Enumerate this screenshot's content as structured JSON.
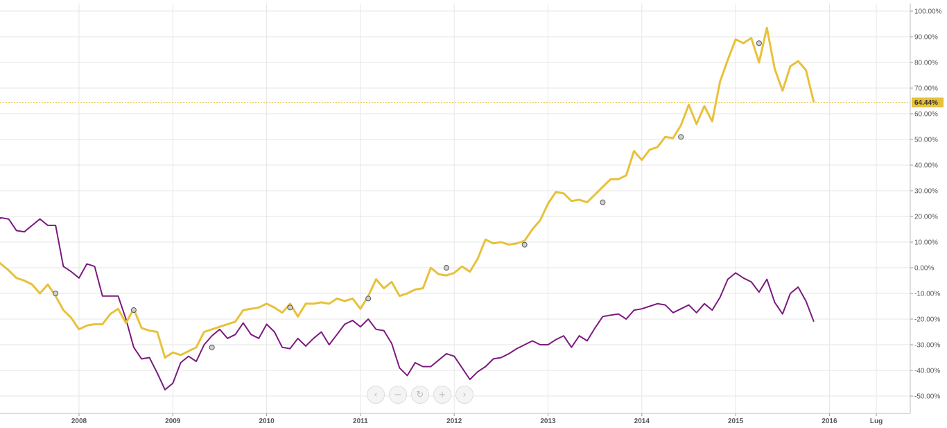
{
  "chart_data": {
    "type": "line",
    "x_axis": {
      "ticks": [
        "2008",
        "2009",
        "2010",
        "2011",
        "2012",
        "2013",
        "2014",
        "2015",
        "2016",
        "Lug"
      ],
      "range": [
        "2007-01",
        "2016-07"
      ]
    },
    "y_axis": {
      "ticks": [
        "100.00%",
        "90.00%",
        "80.00%",
        "70.00%",
        "60.00%",
        "50.00%",
        "40.00%",
        "30.00%",
        "20.00%",
        "10.00%",
        "0.00%",
        "-10.00%",
        "-20.00%",
        "-30.00%",
        "-40.00%",
        "-50.00%"
      ],
      "range": [
        -52,
        102
      ],
      "unit": "%",
      "position": "right"
    },
    "grid": true,
    "current_value": {
      "label": "64.44%",
      "value": 64.44,
      "color": "#e8c13a"
    },
    "series": [
      {
        "color": "#e8c13a",
        "start": "2007-01",
        "step": "month",
        "values": [
          1,
          3.5,
          1.5,
          -1,
          -4,
          -5,
          -6.5,
          -10,
          -6.5,
          -11,
          -16.5,
          -19.5,
          -24,
          -22.5,
          -22,
          -22,
          -18,
          -16,
          -21.5,
          -16,
          -23.5,
          -24.5,
          -25,
          -35,
          -33,
          -34,
          -32.5,
          -31,
          -25,
          -24,
          -23,
          -22,
          -21,
          -16.5,
          -16,
          -15.5,
          -14,
          -15.5,
          -17.5,
          -14,
          -19,
          -14,
          -14,
          -13.5,
          -14,
          -12,
          -13,
          -12,
          -16,
          -11,
          -4.5,
          -8,
          -5.5,
          -11,
          -10,
          -8.5,
          -8,
          0,
          -2.5,
          -3,
          -2,
          0.5,
          -1.5,
          3.5,
          11,
          9.5,
          10,
          9,
          9.5,
          10.5,
          15,
          18.5,
          25,
          29.5,
          29,
          26,
          26.5,
          25.5,
          28.5,
          31.5,
          34.5,
          34.5,
          36,
          45.5,
          42,
          46,
          47,
          51,
          50.5,
          55.5,
          63.5,
          56,
          63,
          57,
          72.5,
          81,
          89,
          87.5,
          89.5,
          80,
          93.5,
          77.5,
          69,
          78.5,
          80.5,
          77,
          64.44
        ],
        "markers": [
          {
            "date": "2007-10",
            "value": -10
          },
          {
            "date": "2008-08",
            "value": -16.5
          },
          {
            "date": "2009-06",
            "value": -31
          },
          {
            "date": "2010-04",
            "value": -15.5
          },
          {
            "date": "2011-02",
            "value": -12
          },
          {
            "date": "2011-12",
            "value": 0
          },
          {
            "date": "2012-10",
            "value": 9
          },
          {
            "date": "2013-08",
            "value": 25.5
          },
          {
            "date": "2014-06",
            "value": 51
          },
          {
            "date": "2015-04",
            "value": 87.5
          }
        ]
      },
      {
        "color": "#7b1a7e",
        "start": "2007-01",
        "step": "month",
        "values": [
          10.5,
          16.5,
          19.5,
          19,
          14.5,
          14,
          16.5,
          19,
          16.5,
          16.5,
          0.5,
          -1.5,
          -4,
          1.5,
          0.5,
          -11,
          -11,
          -11,
          -20,
          -31,
          -35.5,
          -35,
          -41,
          -47.5,
          -45,
          -37,
          -34.5,
          -36.5,
          -30,
          -26.5,
          -24,
          -27.5,
          -26,
          -21.5,
          -26,
          -27.5,
          -22,
          -25,
          -31,
          -31.5,
          -27.5,
          -30.5,
          -27.5,
          -25,
          -30,
          -26,
          -22,
          -20.5,
          -23,
          -20,
          -24,
          -24.5,
          -29.5,
          -39,
          -42,
          -37,
          -38.5,
          -38.5,
          -36,
          -33.5,
          -34.5,
          -39,
          -43.5,
          -40.5,
          -38.5,
          -35.5,
          -35,
          -33.5,
          -31.5,
          -30,
          -28.5,
          -30,
          -30,
          -28,
          -26.5,
          -31,
          -26.5,
          -28.5,
          -23.5,
          -19,
          -18.5,
          -18,
          -20,
          -16.5,
          -16,
          -15,
          -14,
          -14.5,
          -17.5,
          -16,
          -14.5,
          -17.5,
          -14,
          -16.5,
          -11.5,
          -4.5,
          -2,
          -4,
          -5.5,
          -9.5,
          -4.5,
          -13.5,
          -18,
          -10,
          -7.5,
          -13,
          -21
        ]
      }
    ]
  },
  "controls": {
    "prev": "‹",
    "zoom_out": "−",
    "reset": "↻",
    "zoom_in": "+",
    "next": "›"
  }
}
